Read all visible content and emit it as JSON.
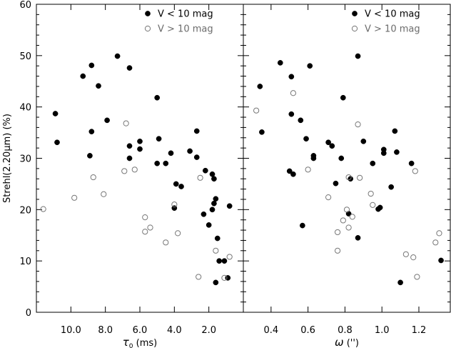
{
  "chart_data": {
    "type": "scatter",
    "ylabel": "Strehl(2.20μm) (%)",
    "ylim": [
      0,
      60
    ],
    "yticks": [
      0,
      10,
      20,
      30,
      40,
      50,
      60
    ],
    "legend": [
      {
        "symbol": "filled-circle",
        "label": "V < 10 mag",
        "color": "#000000"
      },
      {
        "symbol": "open-circle",
        "label": "V > 10 mag",
        "color": "#6b6b6b"
      }
    ],
    "panels": [
      {
        "id": "tau0",
        "xlabel_symbol": "τ",
        "xlabel_subscript": "0",
        "xlabel_units": "(ms)",
        "xlim": [
          12.0,
          0.0
        ],
        "xticks": [
          10.0,
          8.0,
          6.0,
          4.0,
          2.0
        ],
        "xtick_labels": [
          "10.0",
          "8.0",
          "6.0",
          "4.0",
          "2.0"
        ],
        "series": [
          {
            "name": "V < 10 mag",
            "marker": "filled",
            "points": [
              [
                10.9,
                38.7
              ],
              [
                10.8,
                33.1
              ],
              [
                9.3,
                46.0
              ],
              [
                8.8,
                48.1
              ],
              [
                8.4,
                44.1
              ],
              [
                8.8,
                35.2
              ],
              [
                8.9,
                30.5
              ],
              [
                7.9,
                37.4
              ],
              [
                7.3,
                49.9
              ],
              [
                6.6,
                47.6
              ],
              [
                6.6,
                32.4
              ],
              [
                6.6,
                30.0
              ],
              [
                6.0,
                33.3
              ],
              [
                6.0,
                31.8
              ],
              [
                5.0,
                41.8
              ],
              [
                4.9,
                33.8
              ],
              [
                5.0,
                29.0
              ],
              [
                4.5,
                29.0
              ],
              [
                4.2,
                31.0
              ],
              [
                3.9,
                25.0
              ],
              [
                3.6,
                24.5
              ],
              [
                4.0,
                20.3
              ],
              [
                3.1,
                31.4
              ],
              [
                2.7,
                35.3
              ],
              [
                2.7,
                30.2
              ],
              [
                2.2,
                27.6
              ],
              [
                1.8,
                26.9
              ],
              [
                1.7,
                26.0
              ],
              [
                1.6,
                22.1
              ],
              [
                1.7,
                21.2
              ],
              [
                1.8,
                20.0
              ],
              [
                2.3,
                19.1
              ],
              [
                2.0,
                17.0
              ],
              [
                1.5,
                14.4
              ],
              [
                1.4,
                10.0
              ],
              [
                1.1,
                10.0
              ],
              [
                1.6,
                5.8
              ],
              [
                0.9,
                6.7
              ],
              [
                0.8,
                20.7
              ]
            ]
          },
          {
            "name": "V > 10 mag",
            "marker": "open",
            "points": [
              [
                11.6,
                20.1
              ],
              [
                9.8,
                22.3
              ],
              [
                8.7,
                26.3
              ],
              [
                8.1,
                23.0
              ],
              [
                6.8,
                36.8
              ],
              [
                6.9,
                27.5
              ],
              [
                6.3,
                27.8
              ],
              [
                5.7,
                18.5
              ],
              [
                5.7,
                15.7
              ],
              [
                5.4,
                16.5
              ],
              [
                4.5,
                13.6
              ],
              [
                4.0,
                21.0
              ],
              [
                3.8,
                15.4
              ],
              [
                2.5,
                26.2
              ],
              [
                2.6,
                6.9
              ],
              [
                1.6,
                12.0
              ],
              [
                1.1,
                6.7
              ],
              [
                0.8,
                10.8
              ]
            ]
          }
        ]
      },
      {
        "id": "omega",
        "xlabel_symbol": "ω",
        "xlabel_subscript": "",
        "xlabel_units": "('')",
        "xlim": [
          0.25,
          1.37
        ],
        "xticks": [
          0.4,
          0.6,
          0.8,
          1.0,
          1.2
        ],
        "xtick_labels": [
          "0.4",
          "0.6",
          "0.8",
          "1.0",
          "1.2"
        ],
        "series": [
          {
            "name": "V < 10 mag",
            "marker": "filled",
            "points": [
              [
                0.34,
                44.0
              ],
              [
                0.35,
                35.1
              ],
              [
                0.45,
                48.6
              ],
              [
                0.51,
                45.9
              ],
              [
                0.51,
                38.6
              ],
              [
                0.5,
                27.5
              ],
              [
                0.52,
                26.9
              ],
              [
                0.56,
                37.4
              ],
              [
                0.57,
                16.9
              ],
              [
                0.61,
                48.0
              ],
              [
                0.59,
                33.8
              ],
              [
                0.63,
                30.5
              ],
              [
                0.63,
                30.0
              ],
              [
                0.71,
                33.1
              ],
              [
                0.73,
                32.4
              ],
              [
                0.75,
                25.1
              ],
              [
                0.78,
                30.0
              ],
              [
                0.79,
                41.8
              ],
              [
                0.83,
                26.0
              ],
              [
                0.82,
                19.2
              ],
              [
                0.87,
                49.9
              ],
              [
                0.87,
                14.5
              ],
              [
                0.9,
                33.3
              ],
              [
                0.95,
                29.0
              ],
              [
                0.98,
                20.1
              ],
              [
                0.99,
                20.4
              ],
              [
                1.01,
                31.7
              ],
              [
                1.01,
                31.0
              ],
              [
                1.05,
                24.4
              ],
              [
                1.07,
                35.3
              ],
              [
                1.08,
                31.2
              ],
              [
                1.1,
                5.8
              ],
              [
                1.16,
                29.0
              ],
              [
                1.32,
                10.1
              ]
            ]
          },
          {
            "name": "V > 10 mag",
            "marker": "open",
            "points": [
              [
                0.32,
                39.3
              ],
              [
                0.52,
                42.7
              ],
              [
                0.6,
                27.8
              ],
              [
                0.71,
                22.4
              ],
              [
                0.76,
                15.6
              ],
              [
                0.76,
                12.0
              ],
              [
                0.79,
                17.9
              ],
              [
                0.81,
                20.0
              ],
              [
                0.82,
                16.5
              ],
              [
                0.82,
                26.3
              ],
              [
                0.84,
                18.6
              ],
              [
                0.87,
                36.6
              ],
              [
                0.88,
                26.2
              ],
              [
                0.94,
                23.1
              ],
              [
                0.95,
                20.9
              ],
              [
                1.13,
                11.3
              ],
              [
                1.17,
                10.7
              ],
              [
                1.18,
                27.5
              ],
              [
                1.19,
                6.9
              ],
              [
                1.29,
                13.6
              ],
              [
                1.31,
                15.4
              ]
            ]
          }
        ]
      }
    ]
  }
}
